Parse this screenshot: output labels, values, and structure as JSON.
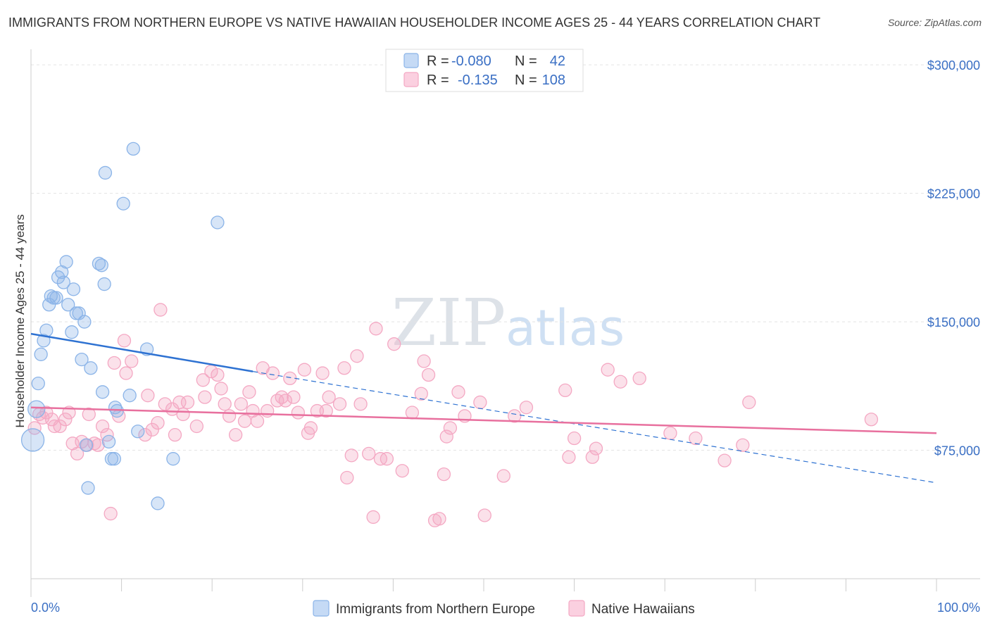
{
  "title": "IMMIGRANTS FROM NORTHERN EUROPE VS NATIVE HAWAIIAN HOUSEHOLDER INCOME AGES 25 - 44 YEARS CORRELATION CHART",
  "source": "Source: ZipAtlas.com",
  "watermark": {
    "zip": "ZIP",
    "atlas": "atlas"
  },
  "chart_data": {
    "type": "scatter",
    "ylabel": "Householder Income Ages 25 - 44 years",
    "xlabel": "",
    "xlim": [
      0,
      100
    ],
    "ylim": [
      0,
      305000
    ],
    "x_tick_labels": {
      "left": "0.0%",
      "right": "100.0%"
    },
    "y_ticks": [
      {
        "value": 75000,
        "label": "$75,000"
      },
      {
        "value": 150000,
        "label": "$150,000"
      },
      {
        "value": 225000,
        "label": "$225,000"
      },
      {
        "value": 300000,
        "label": "$300,000"
      }
    ],
    "grid": true,
    "legend_placement": "top-center",
    "series": [
      {
        "name": "Immigrants from Northern Europe",
        "color": "#8bb4e8",
        "line_color": "#2e72d2",
        "R": "-0.080",
        "N": "42",
        "trend": {
          "x0": 0,
          "y0": 143000,
          "x1": 24.5,
          "y1": 121000,
          "dash_to_x": 100,
          "dash_to_y": 56000
        },
        "points": [
          [
            0.2,
            81000
          ],
          [
            0.6,
            99000
          ],
          [
            0.8,
            114000
          ],
          [
            1.1,
            131000
          ],
          [
            1.4,
            139000
          ],
          [
            1.7,
            145000
          ],
          [
            2.0,
            160000
          ],
          [
            2.2,
            165000
          ],
          [
            2.5,
            164000
          ],
          [
            2.8,
            164000
          ],
          [
            3.0,
            176000
          ],
          [
            3.4,
            179000
          ],
          [
            3.6,
            173000
          ],
          [
            3.9,
            185000
          ],
          [
            4.1,
            160000
          ],
          [
            4.5,
            144000
          ],
          [
            4.7,
            169000
          ],
          [
            5.0,
            155000
          ],
          [
            5.3,
            155000
          ],
          [
            5.6,
            128000
          ],
          [
            5.9,
            150000
          ],
          [
            6.1,
            78000
          ],
          [
            6.3,
            53000
          ],
          [
            6.6,
            123000
          ],
          [
            7.5,
            184000
          ],
          [
            7.8,
            183000
          ],
          [
            7.9,
            109000
          ],
          [
            8.1,
            172000
          ],
          [
            8.2,
            237000
          ],
          [
            8.6,
            80000
          ],
          [
            8.9,
            70000
          ],
          [
            9.2,
            70000
          ],
          [
            9.3,
            100000
          ],
          [
            9.5,
            98000
          ],
          [
            10.2,
            219000
          ],
          [
            10.9,
            107000
          ],
          [
            11.3,
            251000
          ],
          [
            11.8,
            86000
          ],
          [
            12.8,
            134000
          ],
          [
            14.0,
            44000
          ],
          [
            15.7,
            70000
          ],
          [
            20.6,
            208000
          ]
        ]
      },
      {
        "name": "Native Hawaiians",
        "color": "#f4a8c3",
        "line_color": "#e8709e",
        "R": "-0.135",
        "N": "108",
        "trend": {
          "x0": 0,
          "y0": 100000,
          "x1": 100,
          "y1": 85000
        },
        "points": [
          [
            0.4,
            88000
          ],
          [
            0.9,
            96000
          ],
          [
            1.3,
            94000
          ],
          [
            1.7,
            97000
          ],
          [
            2.3,
            93000
          ],
          [
            2.6,
            89000
          ],
          [
            3.2,
            89000
          ],
          [
            3.8,
            93000
          ],
          [
            4.2,
            97000
          ],
          [
            4.6,
            79000
          ],
          [
            5.1,
            73000
          ],
          [
            5.6,
            80000
          ],
          [
            6.2,
            78000
          ],
          [
            6.4,
            96000
          ],
          [
            7.0,
            79000
          ],
          [
            7.4,
            78000
          ],
          [
            7.9,
            89000
          ],
          [
            8.4,
            84000
          ],
          [
            8.8,
            38000
          ],
          [
            9.2,
            126000
          ],
          [
            9.7,
            95000
          ],
          [
            10.3,
            139000
          ],
          [
            10.5,
            120000
          ],
          [
            11.1,
            127000
          ],
          [
            12.6,
            84000
          ],
          [
            12.9,
            107000
          ],
          [
            13.4,
            87000
          ],
          [
            14.0,
            91000
          ],
          [
            14.3,
            157000
          ],
          [
            14.8,
            102000
          ],
          [
            15.6,
            99000
          ],
          [
            15.9,
            84000
          ],
          [
            16.4,
            103000
          ],
          [
            16.8,
            96000
          ],
          [
            17.3,
            103000
          ],
          [
            18.3,
            89000
          ],
          [
            19.0,
            116000
          ],
          [
            19.2,
            106000
          ],
          [
            19.9,
            121000
          ],
          [
            20.6,
            119000
          ],
          [
            21.0,
            111000
          ],
          [
            21.4,
            102000
          ],
          [
            21.9,
            95000
          ],
          [
            22.6,
            84000
          ],
          [
            23.2,
            102000
          ],
          [
            23.6,
            92000
          ],
          [
            24.1,
            109000
          ],
          [
            24.5,
            98000
          ],
          [
            25.0,
            92000
          ],
          [
            25.6,
            123000
          ],
          [
            26.1,
            98000
          ],
          [
            26.7,
            120000
          ],
          [
            27.2,
            104000
          ],
          [
            27.7,
            106000
          ],
          [
            28.1,
            104000
          ],
          [
            28.6,
            117000
          ],
          [
            29.0,
            106000
          ],
          [
            29.5,
            97000
          ],
          [
            30.2,
            122000
          ],
          [
            30.6,
            85000
          ],
          [
            30.9,
            88000
          ],
          [
            31.6,
            98000
          ],
          [
            32.2,
            120000
          ],
          [
            32.6,
            98000
          ],
          [
            32.9,
            106000
          ],
          [
            34.1,
            102000
          ],
          [
            34.6,
            123000
          ],
          [
            34.9,
            59000
          ],
          [
            35.4,
            72000
          ],
          [
            36.0,
            130000
          ],
          [
            36.4,
            102000
          ],
          [
            37.3,
            73000
          ],
          [
            37.8,
            36000
          ],
          [
            38.1,
            146000
          ],
          [
            38.6,
            70000
          ],
          [
            39.3,
            70000
          ],
          [
            40.1,
            137000
          ],
          [
            41.0,
            63000
          ],
          [
            42.1,
            97000
          ],
          [
            43.1,
            108000
          ],
          [
            43.4,
            127000
          ],
          [
            43.9,
            119000
          ],
          [
            44.6,
            34000
          ],
          [
            45.1,
            35000
          ],
          [
            45.6,
            61000
          ],
          [
            45.9,
            83000
          ],
          [
            46.3,
            88000
          ],
          [
            47.2,
            109000
          ],
          [
            47.9,
            95000
          ],
          [
            49.6,
            103000
          ],
          [
            50.1,
            37000
          ],
          [
            52.2,
            60000
          ],
          [
            53.4,
            95000
          ],
          [
            54.7,
            100000
          ],
          [
            59.0,
            110000
          ],
          [
            59.4,
            71000
          ],
          [
            60.0,
            82000
          ],
          [
            62.0,
            71000
          ],
          [
            62.4,
            76000
          ],
          [
            63.7,
            122000
          ],
          [
            65.1,
            115000
          ],
          [
            67.2,
            117000
          ],
          [
            70.6,
            85000
          ],
          [
            73.4,
            82000
          ],
          [
            76.6,
            69000
          ],
          [
            78.6,
            78000
          ],
          [
            79.3,
            103000
          ],
          [
            92.8,
            93000
          ]
        ]
      }
    ]
  }
}
